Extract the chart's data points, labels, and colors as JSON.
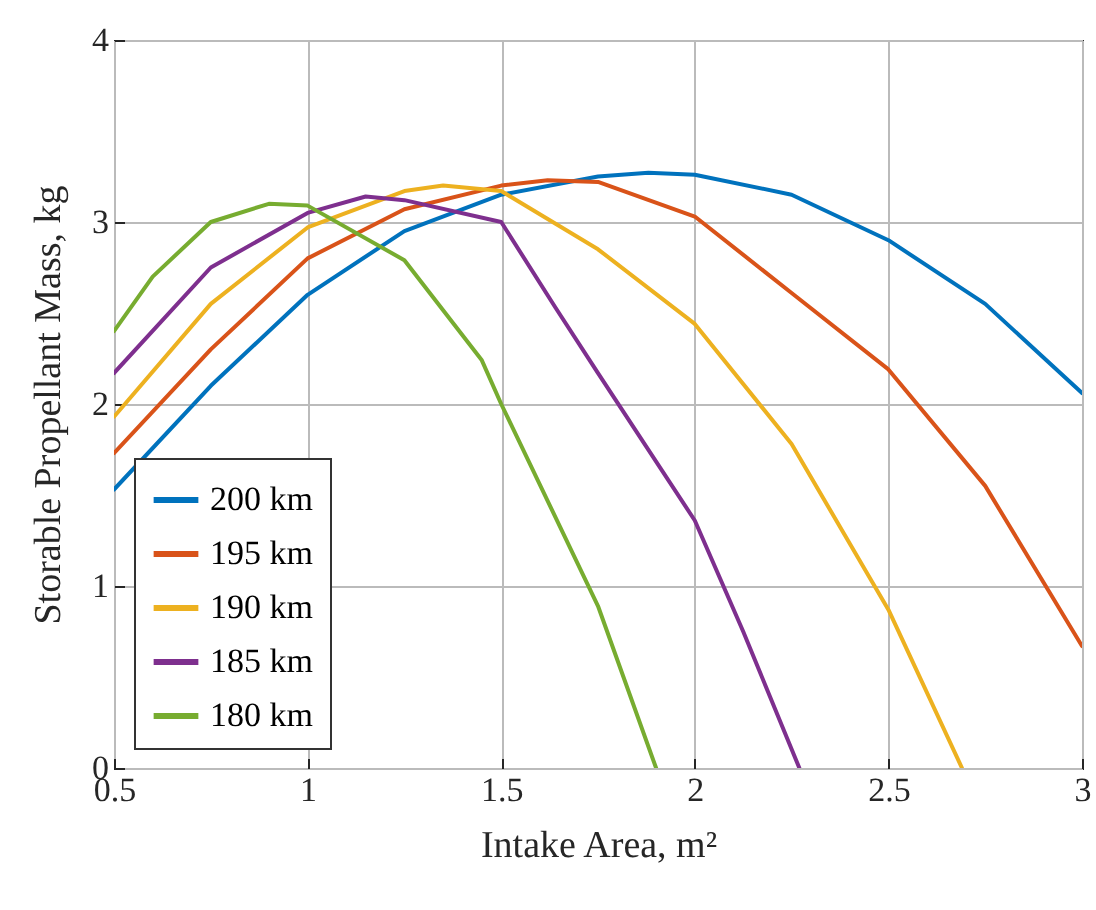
{
  "chart_data": {
    "type": "line",
    "xlabel": "Intake Area, m²",
    "ylabel": "Storable Propellant Mass, kg",
    "xlim": [
      0.5,
      3
    ],
    "ylim": [
      0,
      4
    ],
    "xticks": [
      0.5,
      1,
      1.5,
      2,
      2.5,
      3
    ],
    "yticks": [
      0,
      1,
      2,
      3,
      4
    ],
    "grid": true,
    "legend": "bottom left",
    "line_style": "solid",
    "marker": "none",
    "series": [
      {
        "name": "200 km",
        "color": "#0072bd",
        "x": [
          0.5,
          0.75,
          1,
          1.25,
          1.5,
          1.75,
          1.88,
          2,
          2.25,
          2.5,
          2.75,
          3
        ],
        "values": [
          1.53,
          2.1,
          2.6,
          2.95,
          3.15,
          3.25,
          3.27,
          3.26,
          3.15,
          2.9,
          2.55,
          2.06
        ]
      },
      {
        "name": "195 km",
        "color": "#d95319",
        "x": [
          0.5,
          0.75,
          1,
          1.25,
          1.5,
          1.62,
          1.75,
          2,
          2.25,
          2.5,
          2.75,
          3
        ],
        "values": [
          1.73,
          2.3,
          2.8,
          3.07,
          3.2,
          3.23,
          3.22,
          3.03,
          2.61,
          2.19,
          1.55,
          0.67
        ]
      },
      {
        "name": "190 km",
        "color": "#edb120",
        "x": [
          0.5,
          0.75,
          1,
          1.25,
          1.35,
          1.5,
          1.75,
          2,
          2.25,
          2.5,
          2.69
        ],
        "values": [
          1.93,
          2.55,
          2.97,
          3.17,
          3.2,
          3.17,
          2.85,
          2.44,
          1.78,
          0.87,
          0
        ]
      },
      {
        "name": "185 km",
        "color": "#7e2f8e",
        "x": [
          0.5,
          0.75,
          1,
          1.15,
          1.25,
          1.5,
          1.64,
          1.75,
          2,
          2.125,
          2.27
        ],
        "values": [
          2.17,
          2.75,
          3.05,
          3.14,
          3.12,
          3.0,
          2.53,
          2.17,
          1.36,
          0.75,
          0
        ]
      },
      {
        "name": "180 km",
        "color": "#77ac30",
        "x": [
          0.5,
          0.6,
          0.75,
          0.9,
          1,
          1.25,
          1.45,
          1.5,
          1.75,
          1.9
        ],
        "values": [
          2.4,
          2.7,
          3.0,
          3.1,
          3.09,
          2.79,
          2.24,
          2.0,
          0.89,
          0
        ]
      }
    ]
  }
}
